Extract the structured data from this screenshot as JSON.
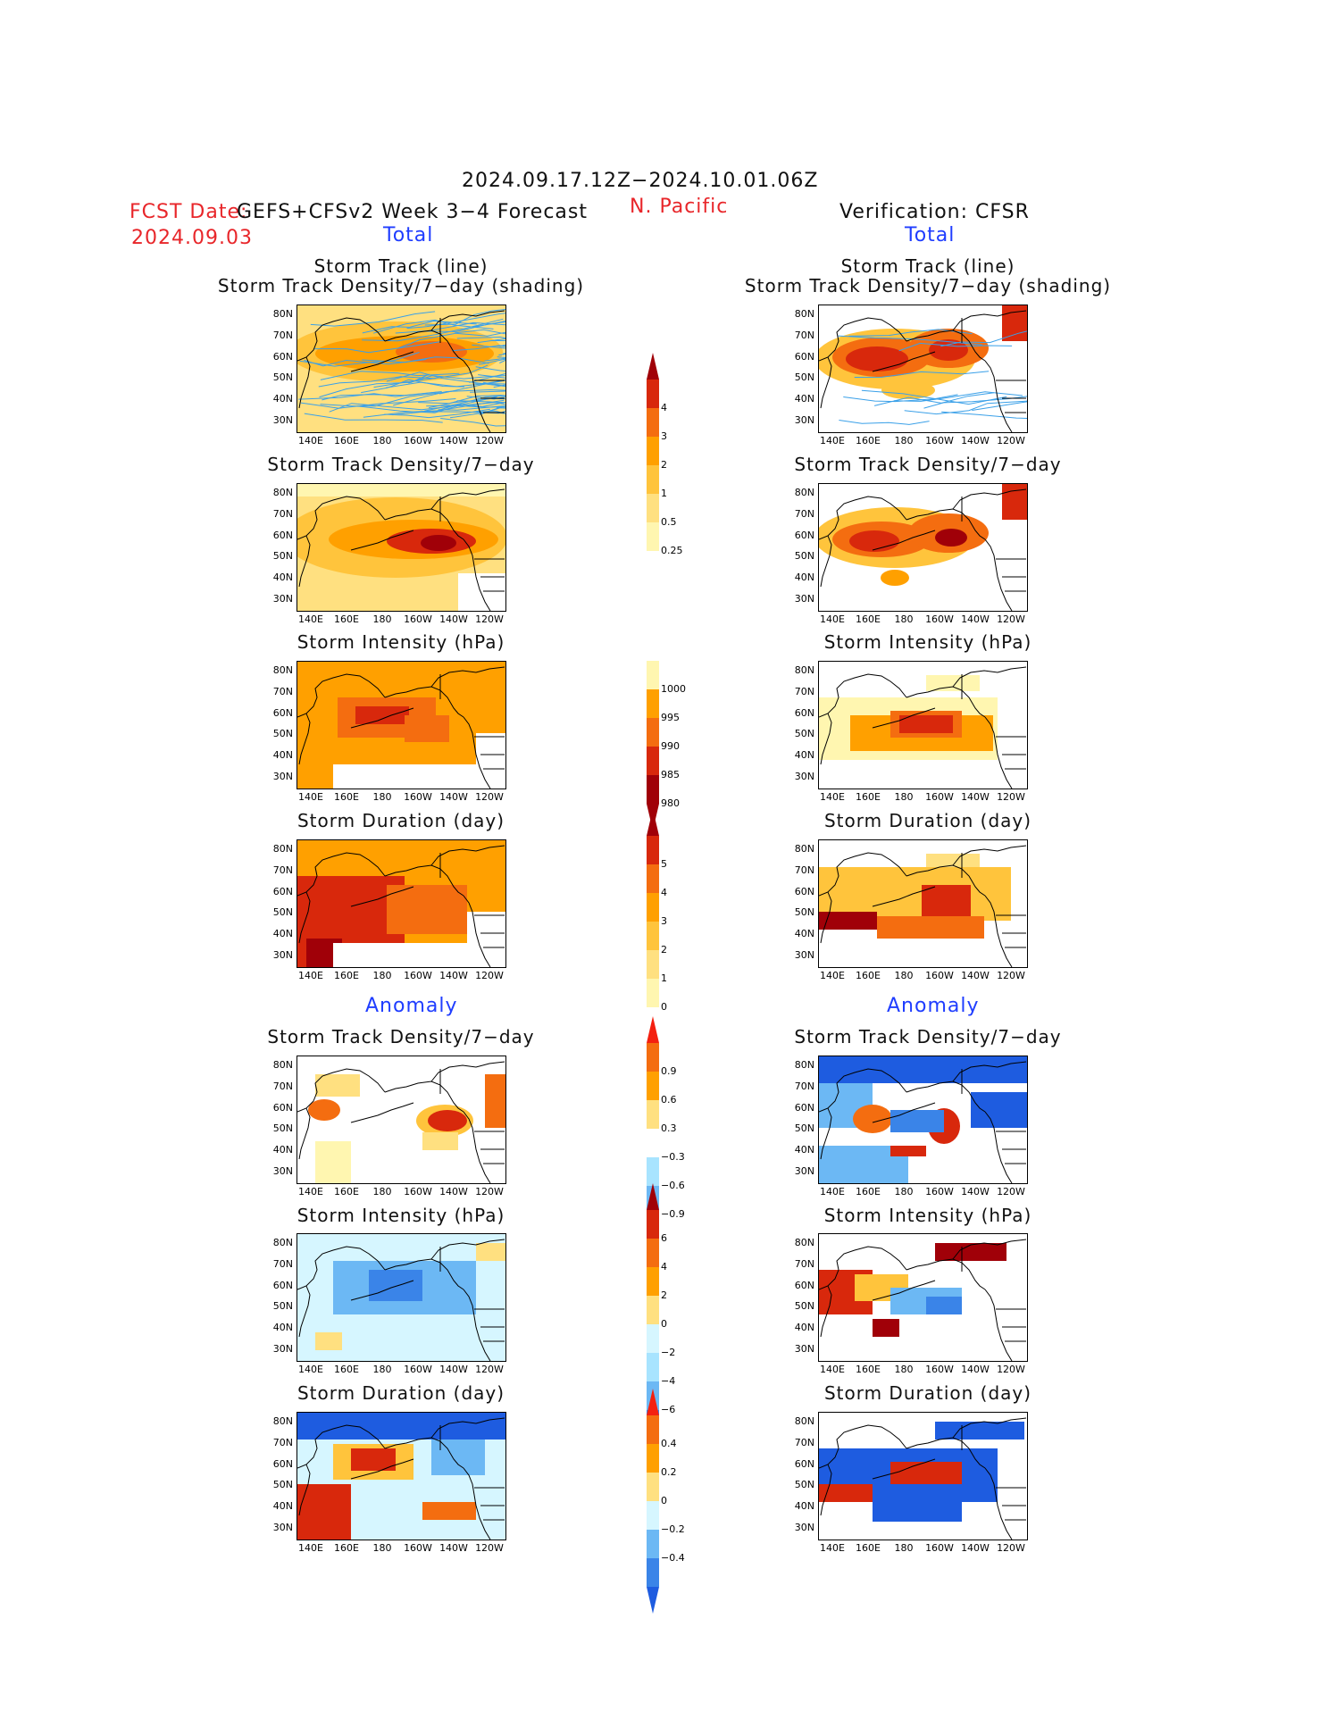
{
  "header": {
    "date_range": "2024.09.17.12Z−2024.10.01.06Z",
    "fcst_label": "FCST Date:",
    "fcst_model": "GEFS+CFSv2 Week 3−4 Forecast",
    "fcst_date": "2024.09.03",
    "region": "N. Pacific",
    "verification": "Verification: CFSR",
    "left_section": "Total",
    "right_section": "Total"
  },
  "sections": {
    "anomaly_left": "Anomaly",
    "anomaly_right": "Anomaly"
  },
  "panel_titles": {
    "track_line": "Storm Track (line)",
    "track_shading": "Storm Track Density/7−day (shading)",
    "density": "Storm Track Density/7−day",
    "intensity": "Storm Intensity (hPa)",
    "duration": "Storm Duration (day)"
  },
  "axes": {
    "x_ticks": [
      "140E",
      "160E",
      "180",
      "160W",
      "140W",
      "120W"
    ],
    "y_ticks": [
      "80N",
      "70N",
      "60N",
      "50N",
      "40N",
      "30N"
    ]
  },
  "colorbars": {
    "total_density": [
      "4",
      "3",
      "2",
      "1",
      "0.5",
      "0.25"
    ],
    "total_intensity": [
      "1000",
      "995",
      "990",
      "985",
      "980"
    ],
    "total_duration": [
      "5",
      "4",
      "3",
      "2",
      "1",
      "0"
    ],
    "anom_density": [
      "0.9",
      "0.6",
      "0.3",
      "−0.3",
      "−0.6",
      "−0.9"
    ],
    "anom_intensity": [
      "6",
      "4",
      "2",
      "0",
      "−2",
      "−4",
      "−6"
    ],
    "anom_duration": [
      "0.4",
      "0.2",
      "0",
      "−0.2",
      "−0.4"
    ]
  },
  "colors": {
    "warm": [
      "#fff6b0",
      "#ffe080",
      "#ffc43c",
      "#ffa000",
      "#f46d10",
      "#d8280c",
      "#a00008"
    ],
    "cool": [
      "#d6f6ff",
      "#a8e4ff",
      "#6cb8f4",
      "#3a84e8",
      "#1e5ce0"
    ],
    "track_line": "#3aa0e8"
  }
}
